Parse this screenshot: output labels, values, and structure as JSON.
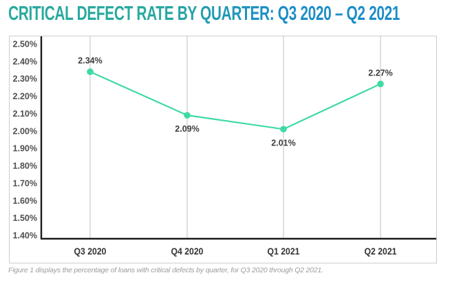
{
  "title": {
    "text": "CRITICAL DEFECT RATE BY QUARTER: Q3 2020 – Q2 2021",
    "color_start": "#28a99e",
    "color_end": "#1c8dc7"
  },
  "caption": {
    "text": "Figure 1 displays the percentage of loans with critical defects by quarter, for Q3 2020 through Q2 2021."
  },
  "chart_data": {
    "type": "line",
    "title": "CRITICAL DEFECT RATE BY QUARTER: Q3 2020 – Q2 2021",
    "categories": [
      "Q3 2020",
      "Q4 2020",
      "Q1 2021",
      "Q2 2021"
    ],
    "values": [
      2.34,
      2.09,
      2.01,
      2.27
    ],
    "point_labels": [
      "2.34%",
      "2.09%",
      "2.01%",
      "2.27%"
    ],
    "point_label_positions": [
      "above",
      "below",
      "below",
      "above"
    ],
    "y_ticks": [
      "2.50%",
      "2.40%",
      "2.30%",
      "2.20%",
      "2.10%",
      "2.00%",
      "1.90%",
      "1.80%",
      "1.70%",
      "1.60%",
      "1.50%",
      "1.40%"
    ],
    "ylim": [
      1.4,
      2.5
    ],
    "xlabel": "",
    "ylabel": "",
    "grid": "vertical-only",
    "legend": "none",
    "line_color": "#3edaa2",
    "marker_color": "#3edaa2",
    "gridline_color": "#cbcbcb",
    "axis_color": "#1a1a1a"
  }
}
